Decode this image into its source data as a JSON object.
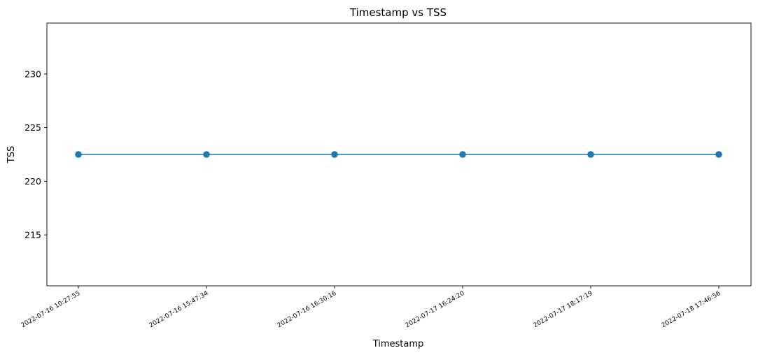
{
  "chart_data": {
    "type": "line",
    "title": "Timestamp vs TSS",
    "xlabel": "Timestamp",
    "ylabel": "TSS",
    "categories": [
      "2022-07-16 10:27:55",
      "2022-07-16 15:47:34",
      "2022-07-16 16:30:16",
      "2022-07-17 16:24:20",
      "2022-07-17 18:17:19",
      "2022-07-18 17:46:56"
    ],
    "series": [
      {
        "values": [
          222.5,
          222.5,
          222.5,
          222.5,
          222.5,
          222.5
        ],
        "color": "#1f77b4",
        "marker": "circle"
      }
    ],
    "ylim": [
      210.25,
      234.75
    ],
    "yticks": [
      215,
      220,
      225,
      230
    ],
    "grid": false,
    "legend": "none"
  }
}
